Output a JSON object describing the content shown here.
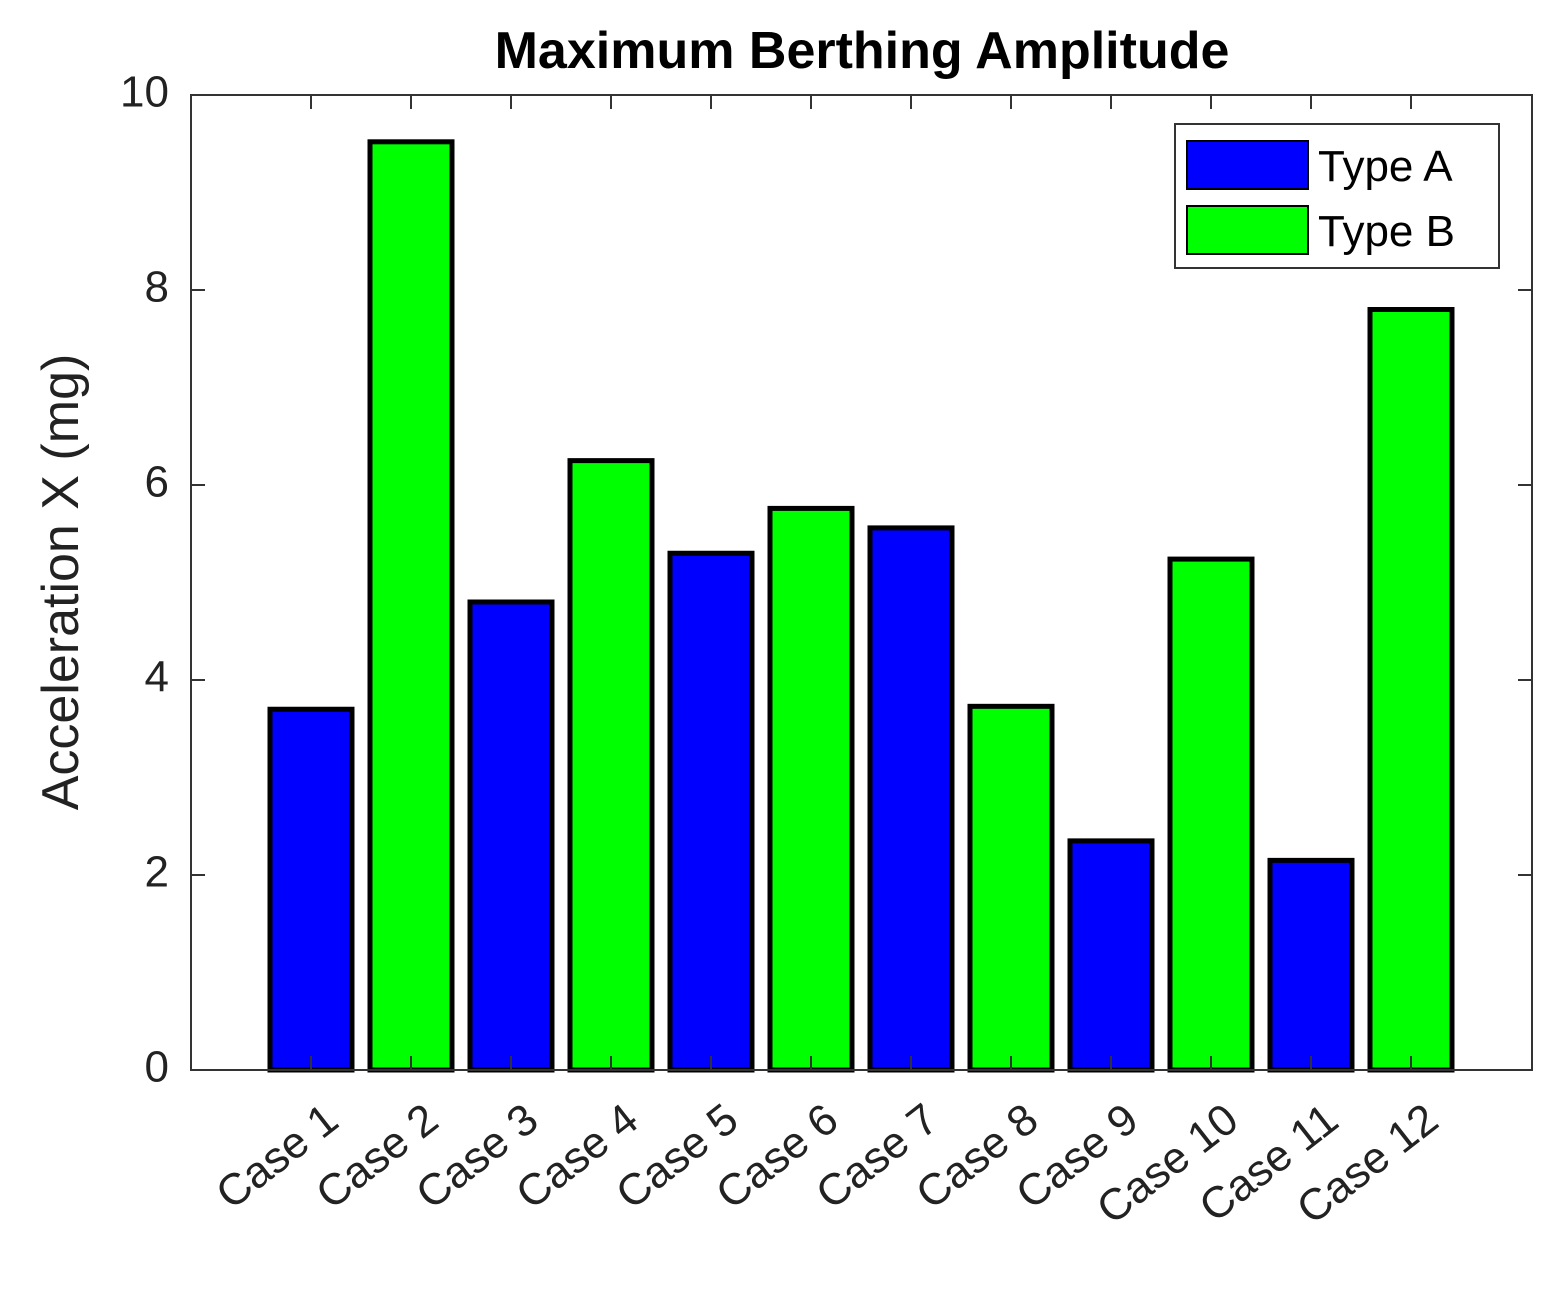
{
  "chart_data": {
    "type": "bar",
    "title": "Maximum Berthing Amplitude",
    "xlabel": "",
    "ylabel": "Acceleration X (mg)",
    "ylim": [
      0,
      10
    ],
    "yticks": [
      0,
      2,
      4,
      6,
      8,
      10
    ],
    "grid": false,
    "legend_position": "top-right",
    "categories": [
      "Case 1",
      "Case 2",
      "Case 3",
      "Case 4",
      "Case 5",
      "Case 6",
      "Case 7",
      "Case 8",
      "Case 9",
      "Case 10",
      "Case 11",
      "Case 12"
    ],
    "values": [
      3.7,
      9.52,
      4.8,
      6.25,
      5.3,
      5.76,
      5.56,
      3.73,
      2.35,
      5.24,
      2.15,
      7.8
    ],
    "bar_series": [
      "Type A",
      "Type B",
      "Type A",
      "Type B",
      "Type A",
      "Type B",
      "Type A",
      "Type B",
      "Type A",
      "Type B",
      "Type A",
      "Type B"
    ],
    "series": [
      {
        "name": "Type A",
        "color": "#0000ff"
      },
      {
        "name": "Type B",
        "color": "#00ff00"
      }
    ]
  }
}
